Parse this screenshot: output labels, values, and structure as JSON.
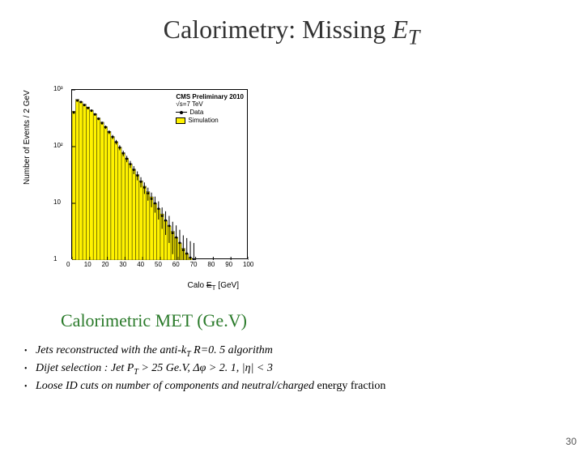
{
  "title": {
    "prefix": "Calorimetry: Missing ",
    "sym": "E",
    "sub": "T"
  },
  "subtitle": "Calorimetric MET (Ge.V)",
  "chart": {
    "type": "histogram",
    "ylabel": "Number of Events / 2 GeV",
    "xlabel_prefix": "Calo ",
    "xlabel_sym": "E",
    "xlabel_unit": " [GeV]",
    "legend_title": "CMS Preliminary 2010",
    "legend_sub": "√s=7 TeV",
    "legend_items": [
      {
        "label": "Data",
        "kind": "marker",
        "color": "#000000"
      },
      {
        "label": "Simulation",
        "kind": "swatch",
        "color": "#fff200"
      }
    ],
    "xlim": [
      0,
      100
    ],
    "xtick_step": 10,
    "ylim": [
      1,
      1000
    ],
    "yscale": "log",
    "yticks": [
      1,
      10,
      100,
      1000
    ],
    "ytick_labels": [
      "1",
      "10",
      "10²",
      "10³"
    ],
    "bar_color": "#fff200",
    "bar_border": "#000000",
    "marker_color": "#000000",
    "background_color": "#ffffff",
    "bin_edges": [
      0,
      2,
      4,
      6,
      8,
      10,
      12,
      14,
      16,
      18,
      20,
      22,
      24,
      26,
      28,
      30,
      32,
      34,
      36,
      38,
      40,
      42,
      44,
      46,
      48,
      50,
      52,
      54,
      56,
      58,
      60,
      62,
      64,
      66,
      68,
      70
    ],
    "sim_counts": [
      420,
      680,
      620,
      560,
      500,
      440,
      380,
      320,
      270,
      225,
      185,
      150,
      122,
      98,
      78,
      62,
      50,
      40,
      32,
      25,
      20,
      16,
      13,
      10,
      8,
      6.5,
      5,
      4,
      3.2,
      2.5,
      2,
      1.6,
      1.3,
      1.1,
      1.0
    ],
    "data_counts": [
      400,
      650,
      610,
      540,
      480,
      430,
      370,
      310,
      260,
      220,
      180,
      148,
      120,
      96,
      76,
      61,
      49,
      39,
      31,
      24,
      19,
      15,
      12,
      10,
      8,
      6,
      5,
      4,
      3,
      2.5,
      2,
      1.5,
      1.3,
      1.1,
      1.0
    ]
  },
  "bullets": [
    {
      "parts": [
        {
          "t": "Jets reconstructed with the anti-k"
        },
        {
          "t": "T",
          "sub": true
        },
        {
          "t": " R=0. 5 algorithm"
        }
      ]
    },
    {
      "parts": [
        {
          "t": " Dijet selection : Jet P"
        },
        {
          "t": "T",
          "sub": true
        },
        {
          "t": " > 25 Ge.V, Δφ > 2. 1, |η| < 3"
        }
      ]
    },
    {
      "parts": [
        {
          "t": "Loose ID cuts on number of components and neutral/charged "
        },
        {
          "t": "energy fraction",
          "nonitalic": true
        }
      ]
    }
  ],
  "page_number": "30",
  "colors": {
    "title": "#333333",
    "subtitle": "#2a7a2a",
    "text": "#000000",
    "page_num": "#555555"
  }
}
